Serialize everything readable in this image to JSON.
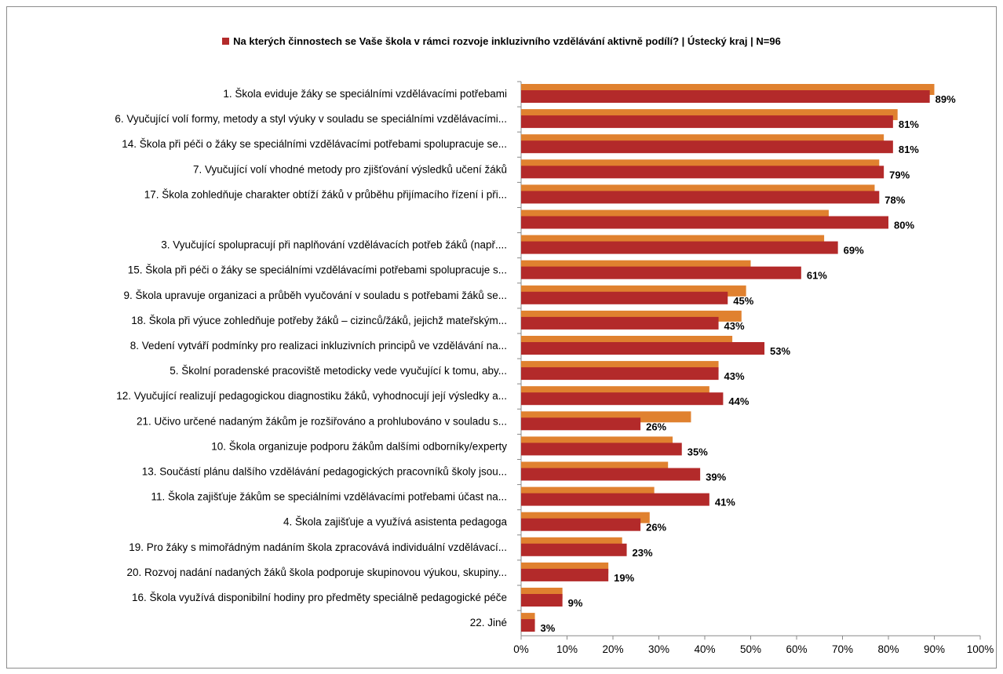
{
  "chart_data": {
    "type": "bar",
    "title": "Na kterých činnostech se Vaše škola v rámci rozvoje inkluzivního vzdělávání aktivně podílí?  | Ústecký kraj | N=96",
    "legend_position": "top",
    "orientation": "horizontal",
    "categories": [
      "1. Škola eviduje žáky se speciálními vzdělávacími potřebami",
      "6. Vyučující volí formy, metody a styl výuky v souladu se speciálními vzdělávacími...",
      "14. Škola při péči o žáky se speciálními vzdělávacími potřebami spolupracuje se...",
      "7. Vyučující volí vhodné metody pro zjišťování výsledků učení žáků",
      "17. Škola zohledňuje charakter obtíží žáků v průběhu přijímacího řízení i při...",
      "",
      "3. Vyučující spolupracují při naplňování vzdělávacích potřeb žáků (např....",
      "15. Škola při péči o žáky se speciálními vzdělávacími potřebami spolupracuje s...",
      "9. Škola upravuje organizaci a průběh vyučování v souladu s potřebami žáků se...",
      "18. Škola při výuce zohledňuje potřeby žáků – cizinců/žáků, jejichž mateřským...",
      "8. Vedení vytváří podmínky pro realizaci inkluzivních principů ve vzdělávání na...",
      "5. Školní poradenské pracoviště metodicky vede vyučující k tomu, aby...",
      "12. Vyučující realizují pedagogickou diagnostiku žáků, vyhodnocují její výsledky a...",
      "21. Učivo určené nadaným žákům je rozšiřováno a prohlubováno v souladu s...",
      "10. Škola organizuje podporu žákům dalšími odborníky/experty",
      "13. Součástí plánu dalšího vzdělávání pedagogických pracovníků školy jsou...",
      "11. Škola zajišťuje žákům se speciálními vzdělávacími potřebami účast na...",
      "4. Škola zajišťuje a využívá asistenta pedagoga",
      "19. Pro žáky s mimořádným nadáním škola zpracovává individuální vzdělávací...",
      "20. Rozvoj nadání nadaných žáků škola podporuje skupinovou výukou, skupiny...",
      "16. Škola využívá disponibilní hodiny pro předměty speciálně pedagogické péče",
      "22. Jiné"
    ],
    "series": [
      {
        "color": "#e0812f",
        "values": [
          90,
          82,
          79,
          78,
          77,
          67,
          66,
          50,
          49,
          48,
          46,
          43,
          41,
          37,
          33,
          32,
          29,
          28,
          22,
          19,
          9,
          3
        ]
      },
      {
        "name": "Na kterých činnostech se Vaše škola v rámci rozvoje inkluzivního vzdělávání aktivně podílí?  | Ústecký kraj | N=96",
        "color": "#b32a2a",
        "values": [
          89,
          81,
          81,
          79,
          78,
          80,
          69,
          61,
          45,
          43,
          53,
          43,
          44,
          26,
          35,
          39,
          41,
          26,
          23,
          19,
          9,
          3
        ],
        "labels": [
          "89%",
          "81%",
          "81%",
          "79%",
          "78%",
          "80%",
          "69%",
          "61%",
          "45%",
          "43%",
          "53%",
          "43%",
          "44%",
          "26%",
          "35%",
          "39%",
          "41%",
          "26%",
          "23%",
          "19%",
          "9%",
          "3%"
        ]
      }
    ],
    "xlim": [
      0,
      100
    ],
    "xticks": [
      "0%",
      "10%",
      "20%",
      "30%",
      "40%",
      "50%",
      "60%",
      "70%",
      "80%",
      "90%",
      "100%"
    ],
    "grid": false
  }
}
